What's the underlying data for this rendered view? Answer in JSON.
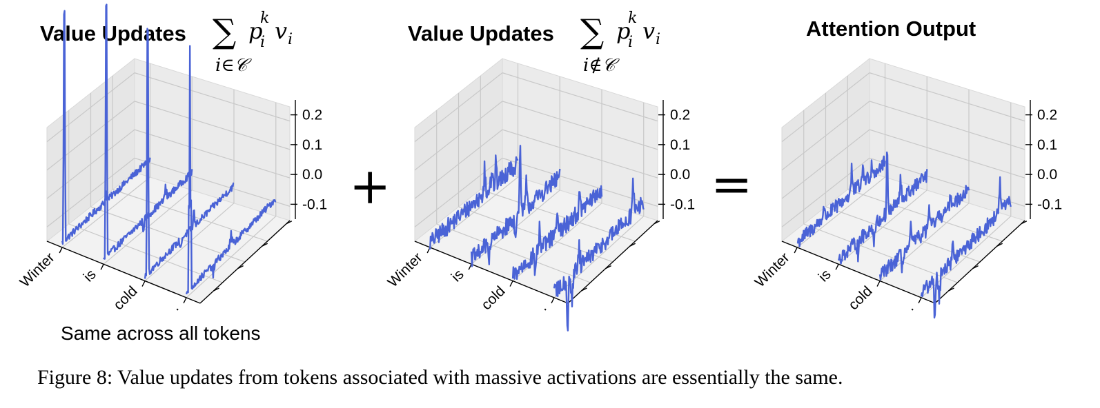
{
  "figure": {
    "caption": "Figure 8: Value updates from tokens associated with massive activations are essentially the same.",
    "note": "Same across all tokens",
    "plus_symbol": "+",
    "equals_symbol": "="
  },
  "chart_data": [
    {
      "type": "line3d",
      "title": "Value Updates",
      "formula": "∑ p_i^k v_i",
      "formula_sum": "∑",
      "formula_p": "p",
      "formula_sup": "k",
      "formula_sub": "i",
      "formula_v": "v",
      "formula_vsub": "i",
      "formula_under": "i∈𝒞",
      "tokens": [
        "Winter",
        "is",
        "cold",
        "."
      ],
      "zticks": [
        "0.2",
        "0.1",
        "0.0",
        "-0.1"
      ],
      "zlim": [
        -0.15,
        0.25
      ],
      "color": "#4a63d6",
      "series_profile": {
        "noise": 0.012,
        "slope": 0.045,
        "spikes": [
          [
            0.0,
            0.5,
            0.015,
            0.5,
            0.02,
            -0.04,
            0.62,
            0.025,
            0.8,
            0.03
          ],
          [
            1.0,
            0.45,
            -0.03,
            0.7,
            0.05,
            -0.03,
            0.2,
            0.03,
            0.88,
            0.035
          ],
          [
            2.0,
            0.4,
            -0.035,
            0.55,
            0.05,
            -0.03,
            0.7,
            0.03,
            0.85,
            0.03
          ],
          [
            3.0,
            0.3,
            -0.04,
            0.5,
            0.045,
            -0.03,
            0.65,
            0.04,
            0.85,
            0.03
          ]
        ]
      }
    },
    {
      "type": "line3d",
      "title": "Value Updates",
      "formula": "∑ p_i^k v_i",
      "formula_sum": "∑",
      "formula_p": "p",
      "formula_sup": "k",
      "formula_sub": "i",
      "formula_v": "v",
      "formula_vsub": "i",
      "formula_under": "i∉𝒞",
      "tokens": [
        "Winter",
        "is",
        "cold",
        "."
      ],
      "zticks": [
        "0.2",
        "0.1",
        "0.0",
        "-0.1"
      ],
      "zlim": [
        -0.15,
        0.25
      ],
      "color": "#4a63d6",
      "series_profile": {
        "noise": 0.03,
        "slope": 0.03,
        "spikes": [
          [
            0.0,
            0.62,
            0.12,
            0.75,
            0.07,
            0.7,
            0.06,
            0.9,
            0.04,
            0.3
          ],
          [
            1.0,
            0.55,
            0.22,
            0.5,
            -0.08,
            0.2,
            -0.06,
            0.62,
            0.1,
            0.3
          ],
          [
            2.0,
            0.3,
            0.1,
            0.5,
            0.08,
            0.25,
            -0.06,
            0.75,
            0.06,
            0.3
          ],
          [
            3.0,
            0.88,
            0.15,
            0.2,
            -0.12,
            0.15,
            -0.17,
            0.28,
            0.08,
            0.3
          ]
        ]
      }
    },
    {
      "type": "line3d",
      "title": "Attention Output",
      "tokens": [
        "Winter",
        "is",
        "cold",
        "."
      ],
      "zticks": [
        "0.2",
        "0.1",
        "0.0",
        "-0.1"
      ],
      "zlim": [
        -0.15,
        0.25
      ],
      "color": "#4a63d6",
      "series_profile": {
        "noise": 0.025,
        "slope": 0.035,
        "spikes": [
          [
            0.0,
            0.62,
            0.1,
            0.75,
            0.06,
            0.3,
            0.05,
            0.85,
            0.04,
            0.4
          ],
          [
            1.0,
            0.55,
            0.2,
            0.4,
            -0.07,
            0.22,
            -0.05,
            0.7,
            0.08,
            0.4
          ],
          [
            2.0,
            0.35,
            0.07,
            0.55,
            0.06,
            0.25,
            -0.05,
            0.8,
            0.05,
            0.4
          ],
          [
            3.0,
            0.88,
            0.14,
            0.2,
            -0.1,
            0.15,
            -0.14,
            0.35,
            0.06,
            0.4
          ]
        ]
      }
    }
  ]
}
